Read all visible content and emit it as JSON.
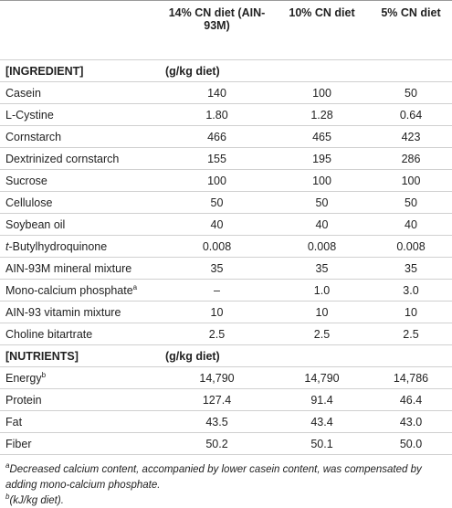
{
  "table": {
    "header": [
      "",
      "14% CN diet (AIN-93M)",
      "10% CN diet",
      "5% CN diet"
    ],
    "sections": [
      {
        "title": "[INGREDIENT]",
        "unit": "(g/kg diet)",
        "rows": [
          {
            "label": "Casein",
            "values": [
              "140",
              "100",
              "50"
            ]
          },
          {
            "label": "L-Cystine",
            "values": [
              "1.80",
              "1.28",
              "0.64"
            ]
          },
          {
            "label": "Cornstarch",
            "values": [
              "466",
              "465",
              "423"
            ]
          },
          {
            "label": "Dextrinized cornstarch",
            "values": [
              "155",
              "195",
              "286"
            ]
          },
          {
            "label": "Sucrose",
            "values": [
              "100",
              "100",
              "100"
            ]
          },
          {
            "label": "Cellulose",
            "values": [
              "50",
              "50",
              "50"
            ]
          },
          {
            "label": "Soybean oil",
            "values": [
              "40",
              "40",
              "40"
            ]
          },
          {
            "italic": "t",
            "label": "-Butylhydroquinone",
            "values": [
              "0.008",
              "0.008",
              "0.008"
            ]
          },
          {
            "label": "AIN-93M mineral mixture",
            "values": [
              "35",
              "35",
              "35"
            ]
          },
          {
            "label": "Mono-calcium phosphate",
            "sup": "a",
            "values": [
              "–",
              "1.0",
              "3.0"
            ]
          },
          {
            "label": "AIN-93 vitamin mixture",
            "values": [
              "10",
              "10",
              "10"
            ]
          },
          {
            "label": "Choline bitartrate",
            "values": [
              "2.5",
              "2.5",
              "2.5"
            ]
          }
        ]
      },
      {
        "title": "[NUTRIENTS]",
        "unit": "(g/kg diet)",
        "rows": [
          {
            "label": "Energy",
            "sup": "b",
            "values": [
              "14,790",
              "14,790",
              "14,786"
            ]
          },
          {
            "label": "Protein",
            "values": [
              "127.4",
              "91.4",
              "46.4"
            ]
          },
          {
            "label": "Fat",
            "values": [
              "43.5",
              "43.4",
              "43.0"
            ]
          },
          {
            "label": "Fiber",
            "values": [
              "50.2",
              "50.1",
              "50.0"
            ]
          }
        ]
      }
    ]
  },
  "footnotes": [
    {
      "mark": "a",
      "text": "Decreased calcium content, accompanied by lower casein content, was compensated by adding mono-calcium phosphate."
    },
    {
      "mark": "b",
      "text": "(kJ/kg diet)."
    }
  ]
}
